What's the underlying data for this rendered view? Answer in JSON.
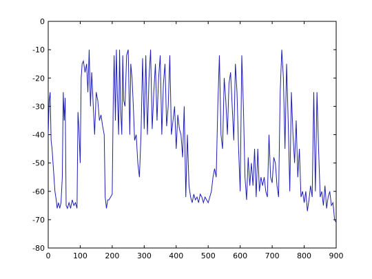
{
  "chart_data": {
    "type": "line",
    "x": [
      0,
      3,
      6,
      9,
      12,
      15,
      18,
      21,
      25,
      28,
      32,
      36,
      40,
      44,
      47,
      50,
      53,
      56,
      60,
      65,
      70,
      75,
      80,
      85,
      90,
      93,
      96,
      100,
      103,
      106,
      110,
      115,
      120,
      124,
      128,
      132,
      136,
      140,
      145,
      150,
      155,
      160,
      165,
      170,
      175,
      178,
      182,
      186,
      190,
      195,
      200,
      203,
      206,
      210,
      213,
      216,
      220,
      223,
      226,
      230,
      233,
      236,
      240,
      245,
      250,
      255,
      258,
      262,
      266,
      270,
      275,
      280,
      285,
      290,
      295,
      300,
      305,
      310,
      315,
      320,
      325,
      330,
      335,
      340,
      345,
      350,
      355,
      360,
      365,
      370,
      375,
      380,
      385,
      390,
      395,
      400,
      405,
      410,
      415,
      420,
      425,
      430,
      435,
      440,
      445,
      450,
      455,
      460,
      465,
      470,
      475,
      480,
      485,
      490,
      495,
      500,
      505,
      510,
      515,
      520,
      525,
      530,
      535,
      540,
      545,
      550,
      555,
      560,
      565,
      570,
      575,
      580,
      585,
      590,
      595,
      600,
      605,
      610,
      615,
      620,
      625,
      630,
      635,
      640,
      645,
      650,
      655,
      660,
      665,
      670,
      675,
      680,
      685,
      690,
      695,
      700,
      705,
      710,
      715,
      720,
      725,
      730,
      735,
      740,
      745,
      750,
      755,
      760,
      765,
      770,
      775,
      780,
      785,
      790,
      795,
      800,
      805,
      810,
      815,
      820,
      825,
      830,
      835,
      840,
      845,
      850,
      855,
      860,
      865,
      870,
      875,
      880,
      885,
      890,
      895,
      900
    ],
    "series": [
      {
        "color": "#1c1cb4",
        "values": [
          -40,
          -28,
          -25,
          -42,
          -45,
          -50,
          -55,
          -60,
          -63,
          -66,
          -64,
          -66,
          -64,
          -55,
          -25,
          -35,
          -27,
          -65,
          -66,
          -64,
          -66,
          -63,
          -65,
          -64,
          -66,
          -32,
          -38,
          -50,
          -20,
          -15,
          -14,
          -18,
          -15,
          -25,
          -10,
          -30,
          -18,
          -28,
          -40,
          -25,
          -28,
          -35,
          -33,
          -37,
          -40,
          -62,
          -66,
          -63,
          -63,
          -62,
          -61,
          -30,
          -12,
          -35,
          -10,
          -25,
          -40,
          -10,
          -30,
          -40,
          -12,
          -28,
          -30,
          -12,
          -10,
          -40,
          -15,
          -20,
          -30,
          -42,
          -40,
          -50,
          -55,
          -40,
          -13,
          -38,
          -12,
          -40,
          -20,
          -10,
          -38,
          -25,
          -15,
          -35,
          -20,
          -12,
          -40,
          -22,
          -15,
          -37,
          -30,
          -12,
          -40,
          -35,
          -30,
          -45,
          -33,
          -38,
          -40,
          -48,
          -30,
          -62,
          -40,
          -58,
          -62,
          -64,
          -61,
          -63,
          -62,
          -64,
          -61,
          -62,
          -64,
          -62,
          -63,
          -64,
          -62,
          -60,
          -55,
          -52,
          -55,
          -30,
          -12,
          -40,
          -45,
          -20,
          -28,
          -40,
          -22,
          -18,
          -30,
          -42,
          -15,
          -25,
          -45,
          -60,
          -12,
          -30,
          -55,
          -63,
          -48,
          -58,
          -50,
          -58,
          -45,
          -62,
          -45,
          -60,
          -55,
          -58,
          -55,
          -60,
          -62,
          -40,
          -55,
          -57,
          -48,
          -50,
          -58,
          -62,
          -25,
          -10,
          -20,
          -45,
          -15,
          -35,
          -60,
          -25,
          -40,
          -50,
          -35,
          -55,
          -45,
          -62,
          -60,
          -64,
          -60,
          -67,
          -63,
          -58,
          -62,
          -25,
          -60,
          -25,
          -45,
          -62,
          -60,
          -65,
          -58,
          -66,
          -62,
          -60,
          -65,
          -64,
          -70,
          -71
        ]
      }
    ],
    "xlim": [
      0,
      900
    ],
    "ylim": [
      -80,
      0
    ],
    "xticks": [
      0,
      100,
      200,
      300,
      400,
      500,
      600,
      700,
      800,
      900
    ],
    "yticks": [
      0,
      -10,
      -20,
      -30,
      -40,
      -50,
      -60,
      -70,
      -80
    ],
    "grid": false
  }
}
